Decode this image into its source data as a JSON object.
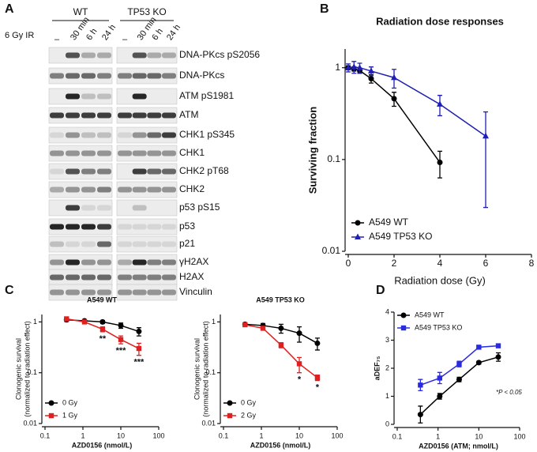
{
  "blot": {
    "panel_label": "A",
    "groups": [
      "WT",
      "TP53 KO"
    ],
    "treatment": "6 Gy IR",
    "lanes": [
      "–",
      "30 min",
      "6 h",
      "24 h"
    ],
    "rows": [
      "DNA-PKcs pS2056",
      "DNA-PKcs",
      "ATM pS1981",
      "ATM",
      "CHK1 pS345",
      "CHK1",
      "CHK2 pT68",
      "CHK2",
      "p53 pS15",
      "p53",
      "p21",
      "γH2AX",
      "H2AX",
      "Vinculin"
    ]
  },
  "chart_data": [
    {
      "type": "line",
      "panel_label": "B",
      "title": "Radiation dose responses",
      "xlabel": "Radiation dose (Gy)",
      "ylabel": "Surviving fraction",
      "xlim": [
        0,
        8
      ],
      "xticks": [
        0,
        2,
        4,
        6,
        8
      ],
      "ylim": [
        0.01,
        1.6
      ],
      "yticks": [
        0.01,
        0.1,
        1
      ],
      "ylog": true,
      "legend": "lower left",
      "series": [
        {
          "name": "A549 WT",
          "color": "#000000",
          "marker": "circle",
          "x": [
            0,
            0.25,
            0.5,
            1,
            2,
            4
          ],
          "values": [
            1,
            0.97,
            0.93,
            0.76,
            0.46,
            0.093
          ],
          "errors": [
            0.05,
            0.05,
            0.06,
            0.08,
            0.08,
            0.03
          ]
        },
        {
          "name": "A549 TP53 KO",
          "color": "#1f1fb4",
          "marker": "triangle",
          "x": [
            0,
            0.25,
            0.5,
            1,
            2,
            4,
            6
          ],
          "values": [
            1,
            1.02,
            1.0,
            0.92,
            0.78,
            0.4,
            0.18
          ],
          "errors": [
            0.1,
            0.15,
            0.12,
            0.1,
            0.18,
            0.1,
            0.15
          ]
        }
      ]
    },
    {
      "type": "line",
      "panel_label": "C",
      "title": "A549 WT",
      "xlabel": "AZD0156 (nmol/L)",
      "ylabel": [
        "Clonogenic survival",
        "(normalized to radiation effect)"
      ],
      "xlim": [
        0.1,
        100
      ],
      "xticks": [
        0.1,
        1,
        10,
        100
      ],
      "xlog": true,
      "ylim": [
        0.01,
        1.4
      ],
      "yticks": [
        0.01,
        0.1,
        1
      ],
      "ylog": true,
      "legend": "lower left",
      "x": [
        0.37,
        1.1,
        3.3,
        10,
        30
      ],
      "significance": [
        null,
        null,
        "**",
        "***",
        "***"
      ],
      "series": [
        {
          "name": "0 Gy",
          "color": "#000000",
          "marker": "circle",
          "values": [
            1.1,
            1.05,
            1.0,
            0.85,
            0.65
          ],
          "errors": [
            0.08,
            0.06,
            0.07,
            0.1,
            0.12
          ]
        },
        {
          "name": "1 Gy",
          "color": "#e02020",
          "marker": "square",
          "values": [
            1.15,
            1.0,
            0.72,
            0.45,
            0.3
          ],
          "errors": [
            0.1,
            0.06,
            0.08,
            0.08,
            0.08
          ]
        }
      ]
    },
    {
      "type": "line",
      "title": "A549 TP53 KO",
      "xlabel": "AZD0156 (nmol/L)",
      "ylabel": [
        "Clonogenic survival",
        "(normalized to radiation effect)"
      ],
      "xlim": [
        0.1,
        100
      ],
      "xticks": [
        0.1,
        1,
        10,
        100
      ],
      "xlog": true,
      "ylim": [
        0.01,
        1.4
      ],
      "yticks": [
        0.01,
        0.1,
        1
      ],
      "ylog": true,
      "legend": "lower left",
      "x": [
        0.37,
        1.1,
        3.3,
        10,
        30
      ],
      "significance": [
        null,
        null,
        null,
        "*",
        "*"
      ],
      "series": [
        {
          "name": "0 Gy",
          "color": "#000000",
          "marker": "circle",
          "values": [
            0.9,
            0.85,
            0.75,
            0.6,
            0.38
          ],
          "errors": [
            0.06,
            0.08,
            0.15,
            0.2,
            0.1
          ]
        },
        {
          "name": "2 Gy",
          "color": "#e02020",
          "marker": "square",
          "values": [
            0.88,
            0.75,
            0.35,
            0.15,
            0.08
          ],
          "errors": [
            0.05,
            0.05,
            0.04,
            0.05,
            0.01
          ]
        }
      ]
    },
    {
      "type": "line",
      "panel_label": "D",
      "xlabel": "AZD0156 (ATM; nmol/L)",
      "ylabel": "aDEF₇₅",
      "note": "*P < 0.05",
      "xlim": [
        0.1,
        100
      ],
      "xticks": [
        0.1,
        1,
        10,
        100
      ],
      "xlog": true,
      "ylim": [
        0,
        4
      ],
      "yticks": [
        0,
        1,
        2,
        3,
        4
      ],
      "legend": "upper left",
      "x": [
        0.37,
        1.1,
        3.3,
        10,
        30
      ],
      "series": [
        {
          "name": "A549 WT",
          "color": "#000000",
          "marker": "circle",
          "values": [
            0.35,
            1.0,
            1.6,
            2.2,
            2.4
          ],
          "errors": [
            0.3,
            0.1,
            0.08,
            0.05,
            0.15
          ]
        },
        {
          "name": "A549 TP53 KO",
          "color": "#2a2ae0",
          "marker": "square",
          "values": [
            1.4,
            1.65,
            2.15,
            2.75,
            2.8
          ],
          "errors": [
            0.2,
            0.2,
            0.1,
            0.05,
            0.05
          ]
        }
      ]
    }
  ]
}
